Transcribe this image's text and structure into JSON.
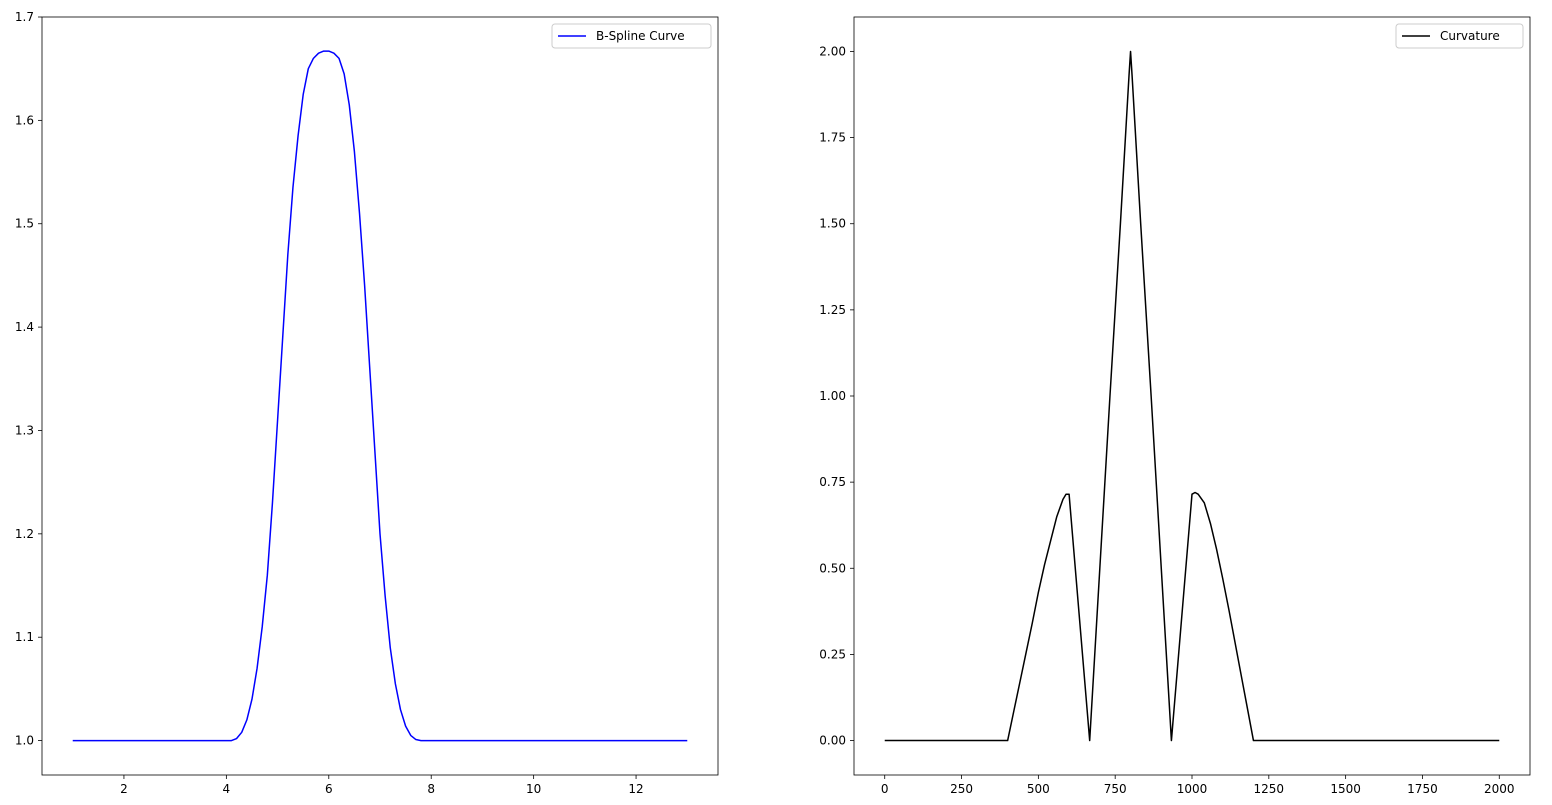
{
  "chart_data": [
    {
      "type": "line",
      "title": "",
      "xlabel": "",
      "ylabel": "",
      "xlim": [
        0.4,
        13.6
      ],
      "ylim": [
        0.9667,
        1.7
      ],
      "xticks": [
        2,
        4,
        6,
        8,
        10,
        12
      ],
      "xtick_labels": [
        "2",
        "4",
        "6",
        "8",
        "10",
        "12"
      ],
      "yticks": [
        1.0,
        1.1,
        1.2,
        1.3,
        1.4,
        1.5,
        1.6,
        1.7
      ],
      "ytick_labels": [
        "1.0",
        "1.1",
        "1.2",
        "1.3",
        "1.4",
        "1.5",
        "1.6",
        "1.7"
      ],
      "grid": false,
      "legend": {
        "placement": "upper-right",
        "entries": [
          "B-Spline Curve"
        ]
      },
      "series": [
        {
          "name": "B-Spline Curve",
          "color": "#0000ff",
          "x": [
            1.0,
            2.0,
            3.0,
            4.0,
            4.1,
            4.2,
            4.3,
            4.4,
            4.5,
            4.6,
            4.7,
            4.8,
            4.9,
            5.0,
            5.1,
            5.2,
            5.3,
            5.4,
            5.5,
            5.6,
            5.7,
            5.8,
            5.9,
            6.0,
            6.1,
            6.2,
            6.3,
            6.4,
            6.5,
            6.6,
            6.7,
            6.8,
            6.9,
            7.0,
            7.1,
            7.2,
            7.3,
            7.4,
            7.5,
            7.6,
            7.7,
            7.8,
            7.9,
            8.0,
            9.0,
            10.0,
            11.0,
            12.0,
            13.0
          ],
          "y": [
            1.0,
            1.0,
            1.0,
            1.0,
            1.0,
            1.002,
            1.008,
            1.02,
            1.04,
            1.07,
            1.11,
            1.16,
            1.23,
            1.31,
            1.39,
            1.47,
            1.535,
            1.585,
            1.625,
            1.65,
            1.66,
            1.665,
            1.667,
            1.667,
            1.665,
            1.66,
            1.645,
            1.615,
            1.57,
            1.51,
            1.44,
            1.36,
            1.28,
            1.2,
            1.14,
            1.09,
            1.055,
            1.03,
            1.014,
            1.005,
            1.001,
            1.0,
            1.0,
            1.0,
            1.0,
            1.0,
            1.0,
            1.0,
            1.0
          ]
        }
      ]
    },
    {
      "type": "line",
      "title": "",
      "xlabel": "",
      "ylabel": "",
      "xlim": [
        -100,
        2100
      ],
      "ylim": [
        -0.1,
        2.1
      ],
      "xticks": [
        0,
        250,
        500,
        750,
        1000,
        1250,
        1500,
        1750,
        2000
      ],
      "xtick_labels": [
        "0",
        "250",
        "500",
        "750",
        "1000",
        "1250",
        "1500",
        "1750",
        "2000"
      ],
      "yticks": [
        0.0,
        0.25,
        0.5,
        0.75,
        1.0,
        1.25,
        1.5,
        1.75,
        2.0
      ],
      "ytick_labels": [
        "0.00",
        "0.25",
        "0.50",
        "0.75",
        "1.00",
        "1.25",
        "1.50",
        "1.75",
        "2.00"
      ],
      "grid": false,
      "legend": {
        "placement": "upper-right",
        "entries": [
          "Curvature"
        ]
      },
      "series": [
        {
          "name": "Curvature",
          "color": "#000000",
          "x": [
            0,
            400,
            420,
            440,
            460,
            480,
            500,
            520,
            540,
            560,
            580,
            590,
            600,
            667,
            700,
            733,
            767,
            795,
            800,
            805,
            833,
            867,
            900,
            933,
            1000,
            1010,
            1020,
            1040,
            1060,
            1080,
            1100,
            1120,
            1140,
            1160,
            1180,
            1200,
            2000
          ],
          "y": [
            0.0,
            0.0,
            0.085,
            0.17,
            0.255,
            0.34,
            0.43,
            0.51,
            0.58,
            0.65,
            0.7,
            0.715,
            0.715,
            0.0,
            0.5,
            1.0,
            1.5,
            1.93,
            2.0,
            1.93,
            1.5,
            1.0,
            0.5,
            0.0,
            0.715,
            0.72,
            0.715,
            0.69,
            0.63,
            0.555,
            0.47,
            0.38,
            0.285,
            0.19,
            0.095,
            0.0,
            0.0
          ]
        }
      ]
    }
  ]
}
